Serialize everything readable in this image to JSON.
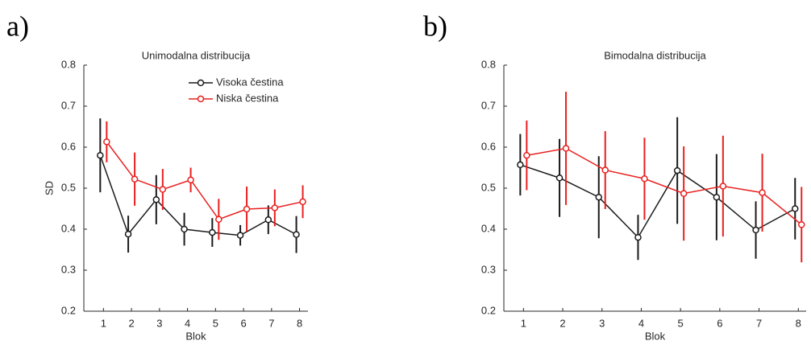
{
  "chart_data": [
    {
      "type": "line",
      "panel_label": "a)",
      "title": "Unimodalna distribucija",
      "xlabel": "Blok",
      "ylabel": "SD",
      "x": [
        1,
        2,
        3,
        4,
        5,
        6,
        7,
        8
      ],
      "xlim": [
        0.3,
        8.3
      ],
      "xticks": [
        1,
        2,
        3,
        4,
        5,
        6,
        7,
        8
      ],
      "ylim": [
        0.2,
        0.8
      ],
      "yticks": [
        0.2,
        0.3,
        0.4,
        0.5,
        0.6,
        0.7,
        0.8
      ],
      "legend": "upper right",
      "series": [
        {
          "name": "Visoka čestina",
          "color": "#1a1a1a",
          "values": [
            0.58,
            0.388,
            0.472,
            0.4,
            0.392,
            0.385,
            0.423,
            0.387
          ],
          "errors": [
            0.09,
            0.045,
            0.06,
            0.04,
            0.035,
            0.025,
            0.035,
            0.045
          ]
        },
        {
          "name": "Niska čestina",
          "color": "#e8201f",
          "values": [
            0.613,
            0.522,
            0.497,
            0.52,
            0.424,
            0.449,
            0.452,
            0.467
          ],
          "errors": [
            0.05,
            0.065,
            0.05,
            0.03,
            0.05,
            0.055,
            0.045,
            0.04
          ]
        }
      ]
    },
    {
      "type": "line",
      "panel_label": "b)",
      "title": "Bimodalna distribucija",
      "xlabel": "Blok",
      "x": [
        1,
        2,
        3,
        4,
        5,
        6,
        7,
        8
      ],
      "xlim": [
        0.5,
        8.2
      ],
      "xticks": [
        1,
        2,
        3,
        4,
        5,
        6,
        7,
        8
      ],
      "ylim": [
        0.2,
        0.8
      ],
      "yticks": [
        0.2,
        0.3,
        0.4,
        0.5,
        0.6,
        0.7,
        0.8
      ],
      "series": [
        {
          "color": "#1a1a1a",
          "values": [
            0.557,
            0.525,
            0.478,
            0.38,
            0.543,
            0.478,
            0.398,
            0.45
          ],
          "errors": [
            0.075,
            0.095,
            0.1,
            0.055,
            0.13,
            0.105,
            0.07,
            0.075
          ]
        },
        {
          "color": "#e8201f",
          "values": [
            0.58,
            0.597,
            0.544,
            0.523,
            0.487,
            0.505,
            0.489,
            0.411
          ],
          "errors": [
            0.085,
            0.138,
            0.095,
            0.1,
            0.115,
            0.123,
            0.095,
            0.092
          ]
        }
      ]
    }
  ]
}
